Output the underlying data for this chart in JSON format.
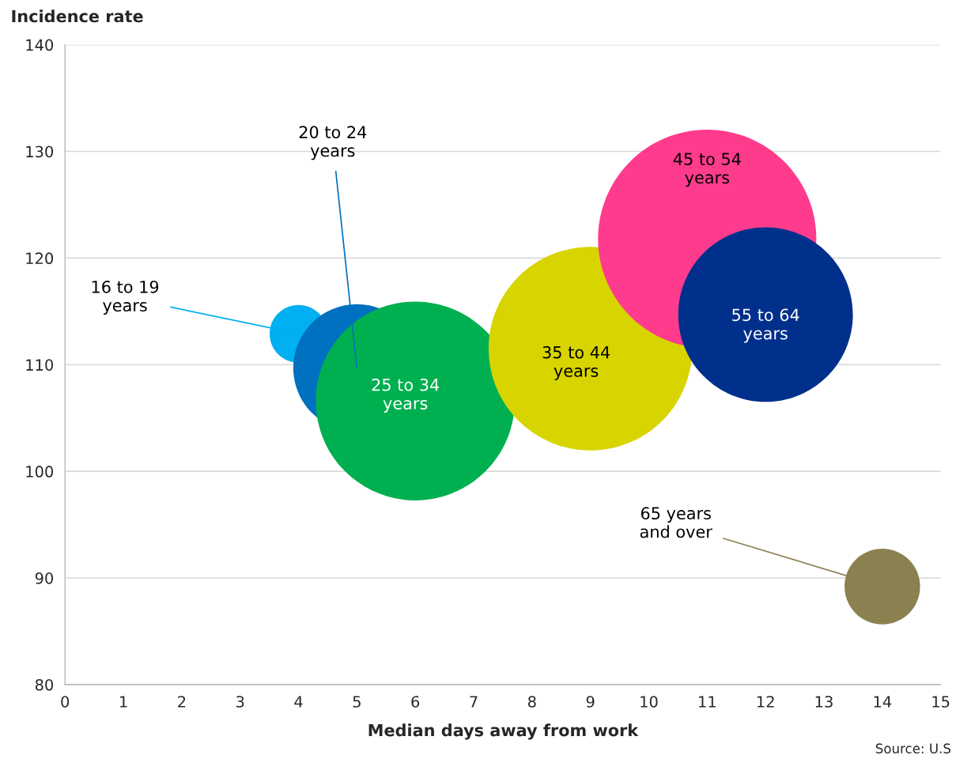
{
  "chart_data": {
    "type": "bubble",
    "xlabel": "Median days away from work",
    "ylabel": "Incidence rate",
    "xlim": [
      0,
      15
    ],
    "xticks": [
      0,
      1,
      2,
      3,
      4,
      5,
      6,
      7,
      8,
      9,
      10,
      11,
      12,
      13,
      14,
      15
    ],
    "ylim": [
      80,
      140
    ],
    "yticks": [
      80,
      90,
      100,
      110,
      120,
      130,
      140
    ],
    "grid": "y",
    "legend": false,
    "series": [
      {
        "name": "16 to 19\nyears",
        "color": "#00b0f0",
        "x": [
          4
        ],
        "values": [
          112.9
        ],
        "sizes": [
          0.07
        ]
      },
      {
        "name": "20 to 24\nyears",
        "color": "#0070c0",
        "x": [
          5
        ],
        "values": [
          109.7
        ],
        "sizes": [
          0.34
        ]
      },
      {
        "name": "25 to 34\nyears",
        "color": "#00b050",
        "x": [
          6
        ],
        "values": [
          106.6
        ],
        "sizes": [
          0.83
        ]
      },
      {
        "name": "35 to 44\nyears",
        "color": "#d8d400",
        "x": [
          9
        ],
        "values": [
          111.5
        ],
        "sizes": [
          0.87
        ]
      },
      {
        "name": "45 to 54\nyears",
        "color": "#ff3b8d",
        "x": [
          11
        ],
        "values": [
          121.8
        ],
        "sizes": [
          1
        ]
      },
      {
        "name": "55 to 64\nyears",
        "color": "#00308c",
        "x": [
          12
        ],
        "values": [
          114.7
        ],
        "sizes": [
          0.64
        ]
      },
      {
        "name": "65 years\nand over",
        "color": "#8b8050",
        "x": [
          14
        ],
        "values": [
          89.2
        ],
        "sizes": [
          0.12
        ]
      }
    ],
    "annotations": [
      "Source: U.S"
    ]
  }
}
